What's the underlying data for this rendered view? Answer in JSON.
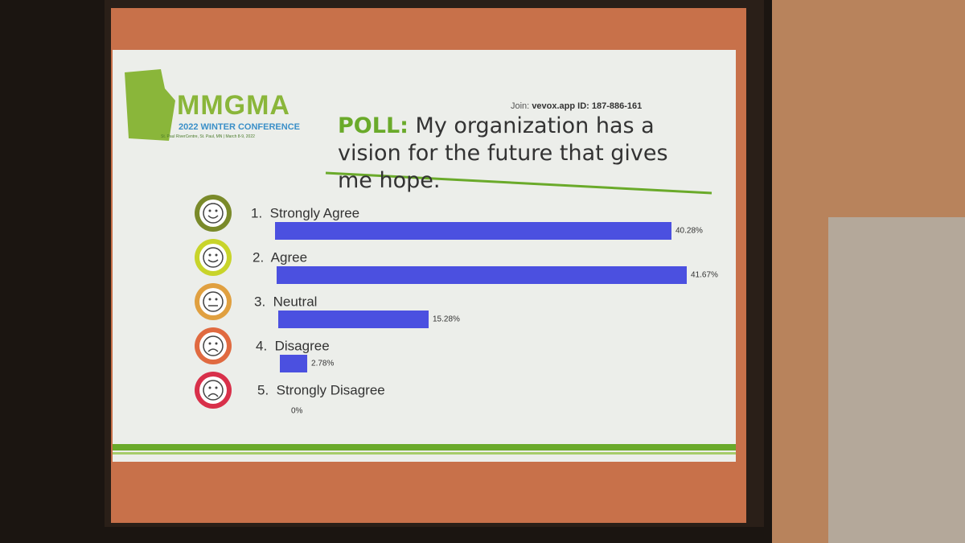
{
  "header": {
    "logo": "MMGMA",
    "conference": "2022 WINTER CONFERENCE",
    "venue": "St. Paul RiverCentre, St. Paul, MN | March 8-9, 2022",
    "join_label": "Join:",
    "join_code": "vevox.app ID: 187-886-161"
  },
  "chart_data": {
    "type": "bar",
    "orientation": "horizontal",
    "title_prefix": "POLL:",
    "title": "My organization has a vision for the future that gives me hope.",
    "categories": [
      "1.  Strongly Agree",
      "2.  Agree",
      "3.  Neutral",
      "4.  Disagree",
      "5.  Strongly Disagree"
    ],
    "values": [
      40.28,
      41.67,
      15.28,
      2.78,
      0
    ],
    "value_labels": [
      "40.28%",
      "41.67%",
      "15.28%",
      "2.78%",
      "0%"
    ],
    "color": "#4b50e0"
  }
}
